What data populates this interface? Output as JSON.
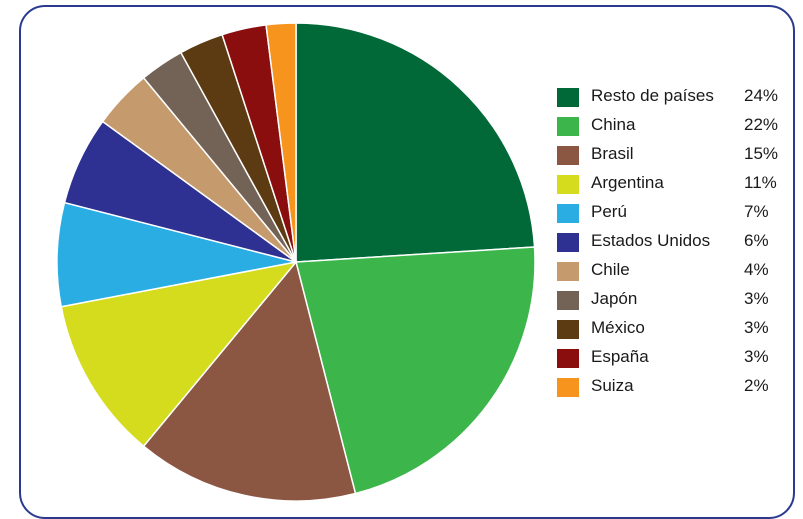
{
  "chart_data": {
    "type": "pie",
    "title": "",
    "slices": [
      {
        "label": "Resto de países",
        "value": 24,
        "value_label": "24%",
        "color": "#016938"
      },
      {
        "label": "China",
        "value": 22,
        "value_label": "22%",
        "color": "#3cb64a"
      },
      {
        "label": "Brasil",
        "value": 15,
        "value_label": "15%",
        "color": "#8b5642"
      },
      {
        "label": "Argentina",
        "value": 11,
        "value_label": "11%",
        "color": "#d5db1d"
      },
      {
        "label": "Perú",
        "value": 7,
        "value_label": "7%",
        "color": "#2aade3"
      },
      {
        "label": "Estados Unidos",
        "value": 6,
        "value_label": "6%",
        "color": "#2e3192"
      },
      {
        "label": "Chile",
        "value": 4,
        "value_label": "4%",
        "color": "#c59a6d"
      },
      {
        "label": "Japón",
        "value": 3,
        "value_label": "3%",
        "color": "#736357"
      },
      {
        "label": "México",
        "value": 3,
        "value_label": "3%",
        "color": "#5c3a12"
      },
      {
        "label": "España",
        "value": 3,
        "value_label": "3%",
        "color": "#8b0e0e"
      },
      {
        "label": "Suiza",
        "value": 2,
        "value_label": "2%",
        "color": "#f7941d"
      }
    ],
    "start_angle": "12 o'clock",
    "direction": "clockwise",
    "legend_position": "right"
  }
}
